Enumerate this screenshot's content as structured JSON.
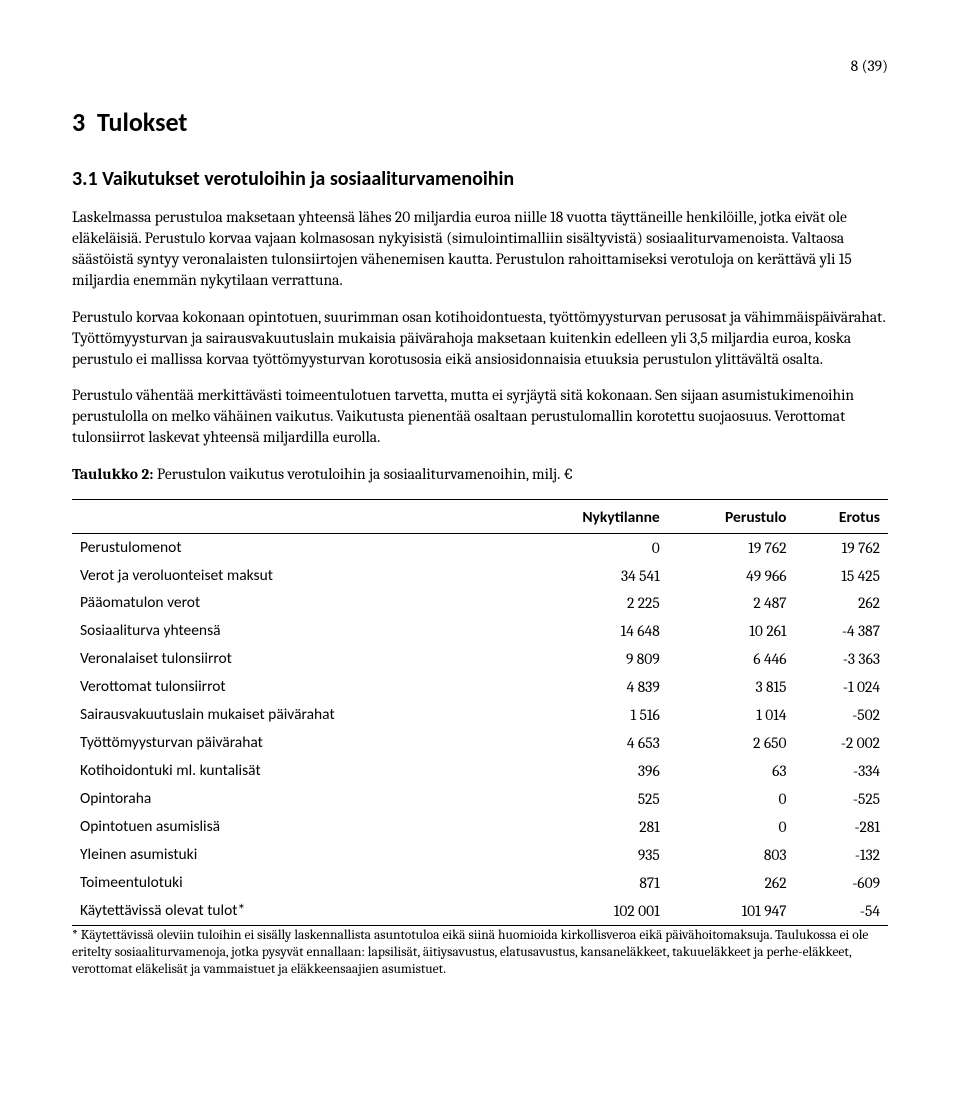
{
  "page_number": "8 (39)",
  "section_number": "3",
  "section_title": "Tulokset",
  "subsection_number": "3.1",
  "subsection_title": "Vaikutukset verotuloihin ja sosiaaliturvamenoihin",
  "para1": "Laskelmassa perustuloa maksetaan yhteensä lähes 20 miljardia euroa niille 18 vuotta täyttäneille henkilöille, jotka eivät ole eläkeläisiä. Perustulo korvaa vajaan kolmasosan nykyisistä (simulointimalliin sisältyvistä) sosiaaliturvamenoista. Valtaosa säästöistä syntyy veronalaisten tulonsiirtojen vähenemisen kautta. Perustulon rahoittamiseksi verotuloja on kerättävä yli 15 miljardia enemmän nykytilaan verrattuna.",
  "para2": "Perustulo korvaa kokonaan opintotuen, suurimman osan kotihoidontuesta, työttömyysturvan perusosat ja vähimmäispäivärahat. Työttömyysturvan ja sairausvakuutuslain mukaisia päivärahoja maksetaan kuitenkin edelleen yli 3,5 miljardia euroa, koska perustulo ei mallissa korvaa työttömyysturvan korotusosia eikä ansiosidonnaisia etuuksia perustulon ylittävältä osalta.",
  "para3": "Perustulo vähentää merkittävästi toimeentulotuen tarvetta, mutta ei syrjäytä sitä kokonaan. Sen sijaan asumistukimenoihin perustulolla on melko vähäinen vaikutus. Vaikutusta pienentää osaltaan perustulomallin korotettu suojaosuus. Verottomat tulonsiirrot laskevat yhteensä miljardilla eurolla.",
  "table_caption_bold": "Taulukko 2:",
  "table_caption_rest": " Perustulon vaikutus verotuloihin ja sosiaaliturvamenoihin, milj. €",
  "columns": [
    "",
    "Nykytilanne",
    "Perustulo",
    "Erotus"
  ],
  "rows": [
    {
      "label": "Perustulomenot",
      "c1": "0",
      "c2": "19 762",
      "c3": "19 762"
    },
    {
      "label": "Verot ja veroluonteiset maksut",
      "c1": "34 541",
      "c2": "49 966",
      "c3": "15 425"
    },
    {
      "label": "Pääomatulon verot",
      "c1": "2 225",
      "c2": "2 487",
      "c3": "262"
    },
    {
      "label": "Sosiaaliturva yhteensä",
      "c1": "14 648",
      "c2": "10 261",
      "c3": "-4 387"
    },
    {
      "label": "Veronalaiset tulonsiirrot",
      "c1": "9 809",
      "c2": "6 446",
      "c3": "-3 363"
    },
    {
      "label": "Verottomat tulonsiirrot",
      "c1": "4 839",
      "c2": "3 815",
      "c3": "-1 024"
    },
    {
      "label": "Sairausvakuutuslain mukaiset päivärahat",
      "c1": "1 516",
      "c2": "1 014",
      "c3": "-502"
    },
    {
      "label": "Työttömyysturvan päivärahat",
      "c1": "4 653",
      "c2": "2 650",
      "c3": "-2 002"
    },
    {
      "label": "Kotihoidontuki ml. kuntalisät",
      "c1": "396",
      "c2": "63",
      "c3": "-334"
    },
    {
      "label": "Opintoraha",
      "c1": "525",
      "c2": "0",
      "c3": "-525"
    },
    {
      "label": "Opintotuen asumislisä",
      "c1": "281",
      "c2": "0",
      "c3": "-281"
    },
    {
      "label": "Yleinen asumistuki",
      "c1": "935",
      "c2": "803",
      "c3": "-132"
    },
    {
      "label": "Toimeentulotuki",
      "c1": "871",
      "c2": "262",
      "c3": "-609"
    },
    {
      "label": "Käytettävissä olevat tulot*",
      "c1": "102 001",
      "c2": "101 947",
      "c3": "-54"
    }
  ],
  "footnote": "* Käytettävissä oleviin tuloihin ei sisälly laskennallista asuntotuloa eikä siinä huomioida kirkollisveroa eikä päivähoitomaksuja. Taulukossa ei ole eritelty sosiaaliturvamenoja, jotka pysyvät ennallaan: lapsilisät, äitiysavustus, elatusavustus, kansaneläkkeet, takuueläkkeet ja perhe-eläkkeet, verottomat eläkelisät ja vammaistuet ja eläkkeensaajien asumistuet."
}
